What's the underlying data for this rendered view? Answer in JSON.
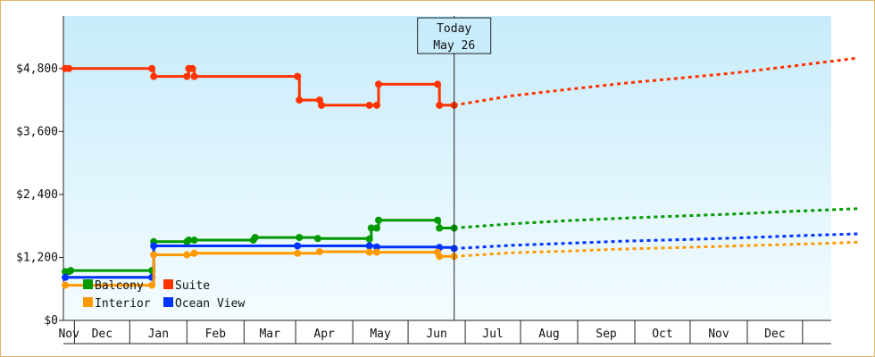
{
  "chart_data": {
    "type": "line",
    "title": "",
    "xlabel": "",
    "ylabel": "",
    "ylim": [
      0,
      5800
    ],
    "grid": false,
    "legend_position": "bottom-left",
    "y_ticks": [
      "$0",
      "$1,200",
      "$2,400",
      "$3,600",
      "$4,800"
    ],
    "y_tick_values": [
      0,
      1200,
      2400,
      3600,
      4800
    ],
    "x_months": [
      "Nov",
      "Dec",
      "Jan",
      "Feb",
      "Mar",
      "Apr",
      "May",
      "Jun",
      "Jul",
      "Aug",
      "Sep",
      "Oct",
      "Nov",
      "Dec"
    ],
    "today": {
      "line1": "Today",
      "line2": "May 26"
    },
    "series": [
      {
        "name": "Suite",
        "color": "#ff3300",
        "history": [
          [
            "2014-10-27",
            4800
          ],
          [
            "2014-10-29",
            4800
          ],
          [
            "2014-12-13",
            4800
          ],
          [
            "2014-12-14",
            4650
          ],
          [
            "2015-01-01",
            4650
          ],
          [
            "2015-01-02",
            4800
          ],
          [
            "2015-01-04",
            4800
          ],
          [
            "2015-01-05",
            4650
          ],
          [
            "2015-03-02",
            4650
          ],
          [
            "2015-03-03",
            4200
          ],
          [
            "2015-03-14",
            4200
          ],
          [
            "2015-03-15",
            4100
          ],
          [
            "2015-04-10",
            4100
          ],
          [
            "2015-04-14",
            4100
          ],
          [
            "2015-04-15",
            4500
          ],
          [
            "2015-05-17",
            4500
          ],
          [
            "2015-05-18",
            4100
          ],
          [
            "2015-05-26",
            4100
          ]
        ],
        "forecast": [
          [
            "2015-05-26",
            4100
          ],
          [
            "2015-06-26",
            4280
          ],
          [
            "2015-07-26",
            4400
          ],
          [
            "2015-08-26",
            4520
          ],
          [
            "2015-09-26",
            4620
          ],
          [
            "2015-10-26",
            4720
          ],
          [
            "2015-11-26",
            4850
          ],
          [
            "2015-12-31",
            5000
          ]
        ]
      },
      {
        "name": "Balcony",
        "color": "#009900",
        "history": [
          [
            "2014-10-27",
            930
          ],
          [
            "2014-10-29",
            930
          ],
          [
            "2014-10-30",
            950
          ],
          [
            "2014-12-13",
            950
          ],
          [
            "2014-12-14",
            1500
          ],
          [
            "2015-01-01",
            1500
          ],
          [
            "2015-01-02",
            1530
          ],
          [
            "2015-01-05",
            1530
          ],
          [
            "2015-02-06",
            1530
          ],
          [
            "2015-02-07",
            1580
          ],
          [
            "2015-03-03",
            1580
          ],
          [
            "2015-03-13",
            1560
          ],
          [
            "2015-04-10",
            1550
          ],
          [
            "2015-04-11",
            1760
          ],
          [
            "2015-04-14",
            1760
          ],
          [
            "2015-04-15",
            1910
          ],
          [
            "2015-05-17",
            1910
          ],
          [
            "2015-05-18",
            1760
          ],
          [
            "2015-05-26",
            1760
          ]
        ],
        "forecast": [
          [
            "2015-05-26",
            1760
          ],
          [
            "2015-06-26",
            1840
          ],
          [
            "2015-07-26",
            1900
          ],
          [
            "2015-08-26",
            1950
          ],
          [
            "2015-09-26",
            1990
          ],
          [
            "2015-10-26",
            2030
          ],
          [
            "2015-11-26",
            2080
          ],
          [
            "2015-12-31",
            2130
          ]
        ]
      },
      {
        "name": "Ocean View",
        "color": "#0033ff",
        "history": [
          [
            "2014-10-27",
            820
          ],
          [
            "2014-12-13",
            820
          ],
          [
            "2014-12-14",
            1420
          ],
          [
            "2015-03-02",
            1420
          ],
          [
            "2015-04-10",
            1420
          ],
          [
            "2015-04-14",
            1400
          ],
          [
            "2015-05-18",
            1390
          ],
          [
            "2015-05-26",
            1370
          ]
        ],
        "forecast": [
          [
            "2015-05-26",
            1370
          ],
          [
            "2015-06-26",
            1430
          ],
          [
            "2015-07-26",
            1470
          ],
          [
            "2015-08-26",
            1510
          ],
          [
            "2015-09-26",
            1540
          ],
          [
            "2015-10-26",
            1570
          ],
          [
            "2015-11-26",
            1610
          ],
          [
            "2015-12-31",
            1650
          ]
        ]
      },
      {
        "name": "Interior",
        "color": "#ff9900",
        "history": [
          [
            "2014-10-27",
            670
          ],
          [
            "2014-12-13",
            670
          ],
          [
            "2014-12-14",
            1250
          ],
          [
            "2015-01-01",
            1250
          ],
          [
            "2015-01-05",
            1280
          ],
          [
            "2015-03-02",
            1280
          ],
          [
            "2015-03-14",
            1310
          ],
          [
            "2015-04-10",
            1300
          ],
          [
            "2015-04-14",
            1300
          ],
          [
            "2015-05-17",
            1300
          ],
          [
            "2015-05-18",
            1220
          ],
          [
            "2015-05-26",
            1220
          ]
        ],
        "forecast": [
          [
            "2015-05-26",
            1220
          ],
          [
            "2015-06-26",
            1290
          ],
          [
            "2015-07-26",
            1320
          ],
          [
            "2015-08-26",
            1360
          ],
          [
            "2015-09-26",
            1390
          ],
          [
            "2015-10-26",
            1420
          ],
          [
            "2015-11-26",
            1450
          ],
          [
            "2015-12-31",
            1490
          ]
        ]
      }
    ],
    "legend": [
      {
        "label": "Balcony",
        "color": "#009900"
      },
      {
        "label": "Suite",
        "color": "#ff3300"
      },
      {
        "label": "Interior",
        "color": "#ff9900"
      },
      {
        "label": "Ocean View",
        "color": "#0033ff"
      }
    ]
  }
}
